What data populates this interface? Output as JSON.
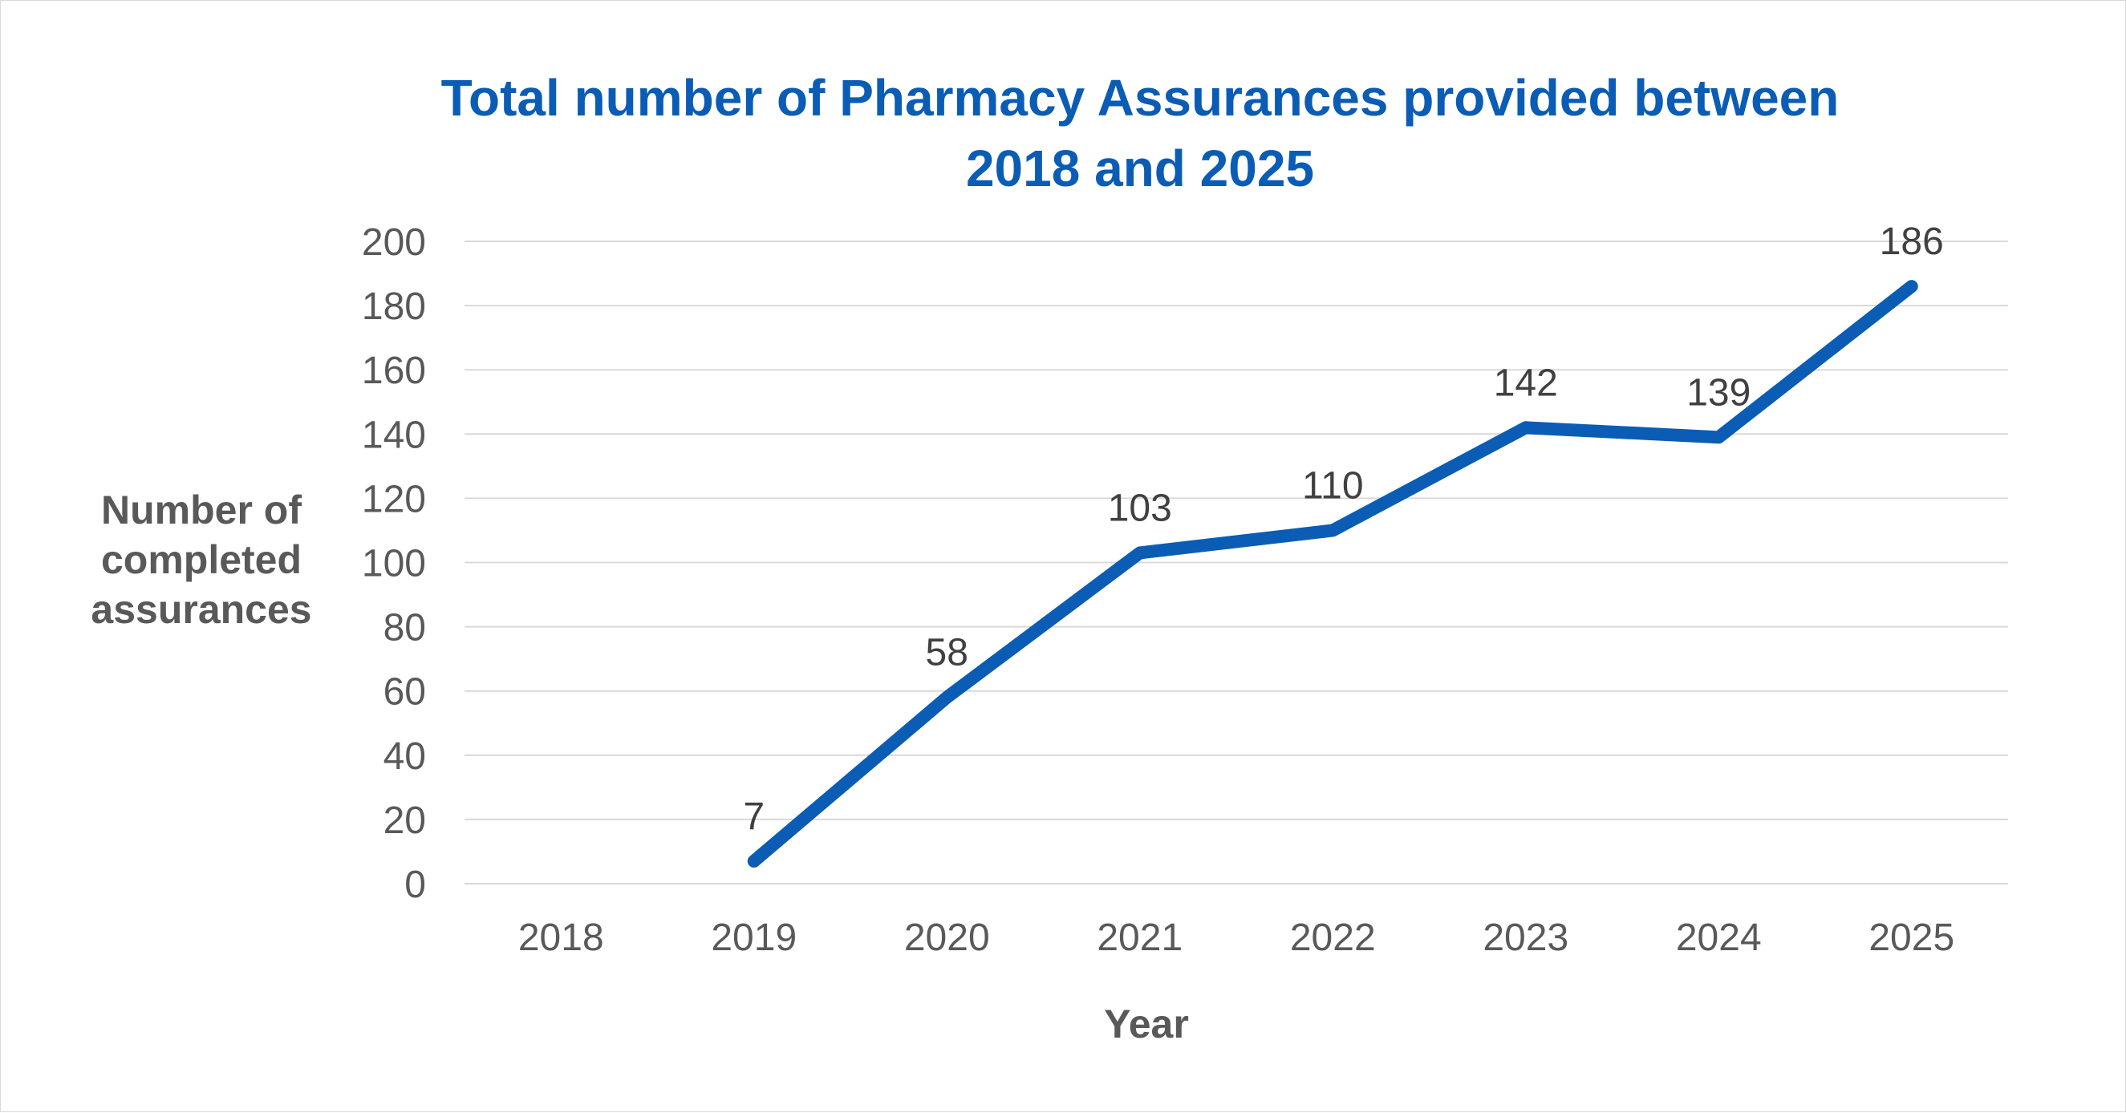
{
  "chart_data": {
    "type": "line",
    "title_lines": [
      "Total number of Pharmacy Assurances provided between",
      "2018 and 2025"
    ],
    "xlabel": "Year",
    "ylabel_lines": [
      "Number of",
      "completed",
      "assurances"
    ],
    "categories": [
      "2018",
      "2019",
      "2020",
      "2021",
      "2022",
      "2023",
      "2024",
      "2025"
    ],
    "series": [
      {
        "values": [
          null,
          7,
          58,
          103,
          110,
          142,
          139,
          186
        ],
        "color": "#0a5cb5"
      }
    ],
    "data_labels": [
      "",
      "7",
      "58",
      "103",
      "110",
      "142",
      "139",
      "186"
    ],
    "ylim": [
      0,
      200
    ],
    "yticks": [
      0,
      20,
      40,
      60,
      80,
      100,
      120,
      140,
      160,
      180,
      200
    ],
    "grid": true,
    "legend": "none"
  }
}
